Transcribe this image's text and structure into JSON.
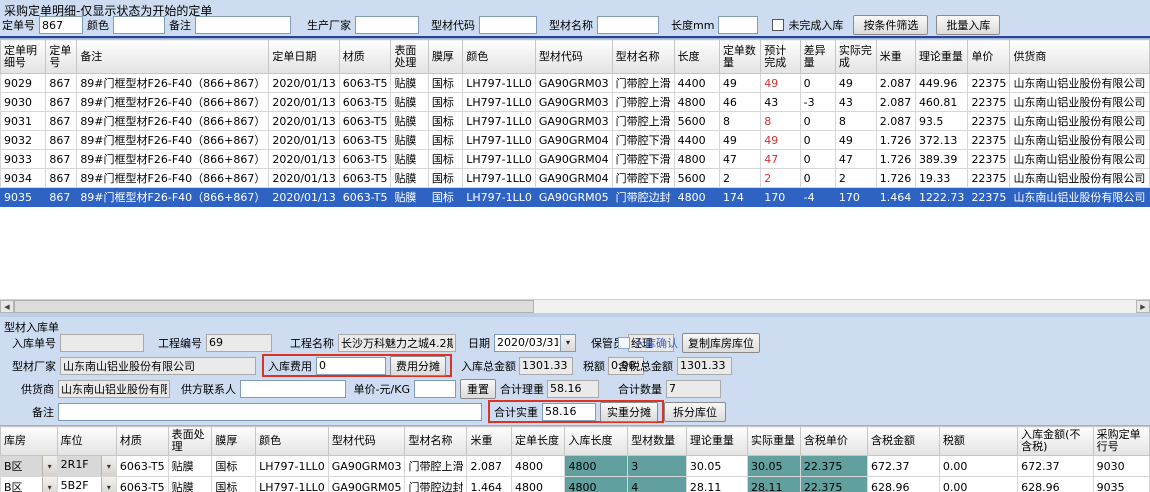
{
  "colors": {
    "panel_bg": "#cddcf1",
    "selection_blue": "#2e63c4",
    "highlight_red_text": "#cc3333",
    "teal_cell": "#62a0a0",
    "red_box_border": "#dd3322"
  },
  "top_panel": {
    "title": "采购定单明细-仅显示状态为开始的定单",
    "filters": {
      "order_no_label": "定单号",
      "order_no_value": "867",
      "color_label": "颜色",
      "color_value": "",
      "remark_label": "备注",
      "remark_value": "",
      "producer_label": "生产厂家",
      "producer_value": "",
      "profile_code_label": "型材代码",
      "profile_code_value": "",
      "profile_name_label": "型材名称",
      "profile_name_value": "",
      "length_label": "长度mm",
      "length_value": "",
      "unfinished_checkbox_label": "未完成入库",
      "filter_button_label": "按条件筛选",
      "batch_inbound_button_label": "批量入库"
    },
    "grid": {
      "headers": [
        "定单明细号",
        "定单号",
        "备注",
        "定单日期",
        "材质",
        "表面处理",
        "膜厚",
        "颜色",
        "型材代码",
        "型材名称",
        "长度",
        "定单数量",
        "预计完成",
        "差异量",
        "实际完成",
        "米重",
        "理论重量",
        "单价",
        "供货商"
      ],
      "rows": [
        {
          "cells": [
            "9029",
            "867",
            "89#门框型材F26-F40（866+867）",
            "2020/01/13",
            "6063-T5",
            "贴膜",
            "国标",
            "LH797-1LL0",
            "GA90GRM03",
            "门带腔上滑",
            "4400",
            "49",
            "49",
            "0",
            "49",
            "2.087",
            "449.96",
            "22375",
            "山东南山铝业股份有限公司"
          ],
          "expected_red": true,
          "selected": false
        },
        {
          "cells": [
            "9030",
            "867",
            "89#门框型材F26-F40（866+867）",
            "2020/01/13",
            "6063-T5",
            "贴膜",
            "国标",
            "LH797-1LL0",
            "GA90GRM03",
            "门带腔上滑",
            "4800",
            "46",
            "43",
            "-3",
            "43",
            "2.087",
            "460.81",
            "22375",
            "山东南山铝业股份有限公司"
          ],
          "expected_red": false,
          "selected": false
        },
        {
          "cells": [
            "9031",
            "867",
            "89#门框型材F26-F40（866+867）",
            "2020/01/13",
            "6063-T5",
            "贴膜",
            "国标",
            "LH797-1LL0",
            "GA90GRM03",
            "门带腔上滑",
            "5600",
            "8",
            "8",
            "0",
            "8",
            "2.087",
            "93.5",
            "22375",
            "山东南山铝业股份有限公司"
          ],
          "expected_red": true,
          "selected": false
        },
        {
          "cells": [
            "9032",
            "867",
            "89#门框型材F26-F40（866+867）",
            "2020/01/13",
            "6063-T5",
            "贴膜",
            "国标",
            "LH797-1LL0",
            "GA90GRM04",
            "门带腔下滑",
            "4400",
            "49",
            "49",
            "0",
            "49",
            "1.726",
            "372.13",
            "22375",
            "山东南山铝业股份有限公司"
          ],
          "expected_red": true,
          "selected": false
        },
        {
          "cells": [
            "9033",
            "867",
            "89#门框型材F26-F40（866+867）",
            "2020/01/13",
            "6063-T5",
            "贴膜",
            "国标",
            "LH797-1LL0",
            "GA90GRM04",
            "门带腔下滑",
            "4800",
            "47",
            "47",
            "0",
            "47",
            "1.726",
            "389.39",
            "22375",
            "山东南山铝业股份有限公司"
          ],
          "expected_red": true,
          "selected": false
        },
        {
          "cells": [
            "9034",
            "867",
            "89#门框型材F26-F40（866+867）",
            "2020/01/13",
            "6063-T5",
            "贴膜",
            "国标",
            "LH797-1LL0",
            "GA90GRM04",
            "门带腔下滑",
            "5600",
            "2",
            "2",
            "0",
            "2",
            "1.726",
            "19.33",
            "22375",
            "山东南山铝业股份有限公司"
          ],
          "expected_red": true,
          "selected": false
        },
        {
          "cells": [
            "9035",
            "867",
            "89#门框型材F26-F40（866+867）",
            "2020/01/13",
            "6063-T5",
            "贴膜",
            "国标",
            "LH797-1LL0",
            "GA90GRM05",
            "门带腔边封",
            "4800",
            "174",
            "170",
            "-4",
            "170",
            "1.464",
            "1222.73",
            "22375",
            "山东南山铝业股份有限公司"
          ],
          "expected_red": false,
          "selected": true
        }
      ]
    }
  },
  "bottom_panel": {
    "title": "型材入库单",
    "fields": {
      "inbound_no_label": "入库单号",
      "inbound_no_value": "",
      "project_no_label": "工程编号",
      "project_no_value": "69",
      "project_name_label": "工程名称",
      "project_name_value": "长沙万科魅力之城4.2期",
      "date_label": "日期",
      "date_value": "2020/03/31",
      "keeper_label": "保管员",
      "keeper_value": "经理",
      "confirm_checkbox_label": "入库确认",
      "copy_location_button_label": "复制库房库位",
      "factory_label": "型材厂家",
      "factory_value": "山东南山铝业股份有限公司",
      "inbound_fee_label": "入库费用",
      "inbound_fee_value": "0",
      "fee_share_button_label": "费用分摊",
      "total_amount_label": "入库总金额",
      "total_amount_value": "1301.33",
      "tax_label": "税额",
      "tax_value": "0.00",
      "tax_incl_total_label": "含税总金额",
      "tax_incl_total_value": "1301.33",
      "supplier_label": "供货商",
      "supplier_value": "山东南山铝业股份有限公司",
      "supplier_contact_label": "供方联系人",
      "supplier_contact_value": "",
      "unit_price_label": "单价-元/KG",
      "unit_price_value": "",
      "reset_button_label": "重置",
      "total_theory_weight_label": "合计理重",
      "total_theory_weight_value": "58.16",
      "total_qty_label": "合计数量",
      "total_qty_value": "7",
      "remark_label": "备注",
      "remark_value": "",
      "total_actual_weight_label": "合计实重",
      "total_actual_weight_value": "58.16",
      "actual_share_button_label": "实重分摊",
      "split_location_button_label": "拆分库位"
    },
    "grid": {
      "headers": [
        "库房",
        "库位",
        "材质",
        "表面处理",
        "膜厚",
        "颜色",
        "型材代码",
        "型材名称",
        "米重",
        "定单长度",
        "入库长度",
        "型材数量",
        "理论重量",
        "实际重量",
        "含税单价",
        "含税金额",
        "税额",
        "入库金额(不含税)",
        "采购定单行号"
      ],
      "rows": [
        {
          "cells": [
            "B区",
            "2R1F",
            "6063-T5",
            "贴膜",
            "国标",
            "LH797-1LL0",
            "GA90GRM03",
            "门带腔上滑",
            "2.087",
            "4800",
            "4800",
            "3",
            "30.05",
            "30.05",
            "22.375",
            "672.37",
            "0.00",
            "672.37",
            "9030"
          ],
          "combo_gray": true
        },
        {
          "cells": [
            "B区",
            "5B2F",
            "6063-T5",
            "贴膜",
            "国标",
            "LH797-1LL0",
            "GA90GRM05",
            "门带腔边封",
            "1.464",
            "4800",
            "4800",
            "4",
            "28.11",
            "28.11",
            "22.375",
            "628.96",
            "0.00",
            "628.96",
            "9035"
          ],
          "combo_gray": false
        }
      ]
    }
  }
}
